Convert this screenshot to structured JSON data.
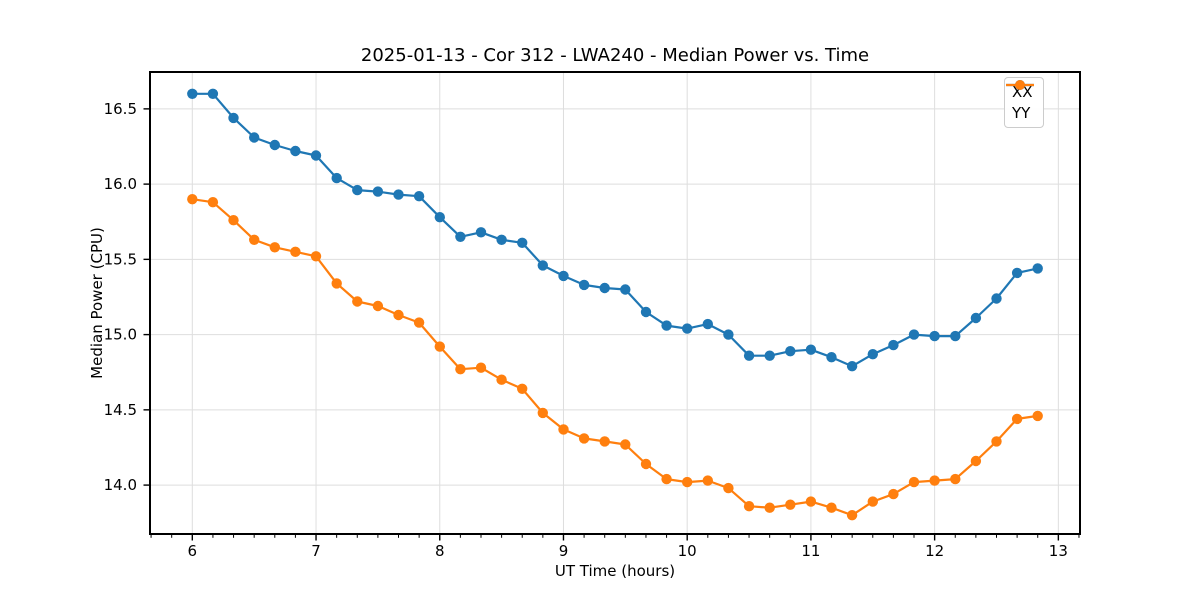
{
  "chart_data": {
    "type": "line",
    "title": "2025-01-13 - Cor 312 - LWA240 - Median Power vs. Time",
    "xlabel": "UT Time (hours)",
    "ylabel": "Median Power (CPU)",
    "xlim": [
      5.658,
      13.175
    ],
    "ylim": [
      13.675,
      16.745
    ],
    "x_ticks": [
      6,
      7,
      8,
      9,
      10,
      11,
      12,
      13
    ],
    "x_minor_step_hours": 0.16667,
    "y_ticks": [
      14.0,
      14.5,
      15.0,
      15.5,
      16.0,
      16.5
    ],
    "grid": true,
    "legend_position": "upper right",
    "marker": "o",
    "colors": {
      "grid": "#dedede",
      "spine": "#000000",
      "legend_border": "#cccccc"
    },
    "x": [
      6.0,
      6.1667,
      6.3333,
      6.5,
      6.6667,
      6.8333,
      7.0,
      7.1667,
      7.3333,
      7.5,
      7.6667,
      7.8333,
      8.0,
      8.1667,
      8.3333,
      8.5,
      8.6667,
      8.8333,
      9.0,
      9.1667,
      9.3333,
      9.5,
      9.6667,
      9.8333,
      10.0,
      10.1667,
      10.3333,
      10.5,
      10.6667,
      10.8333,
      11.0,
      11.1667,
      11.3333,
      11.5,
      11.6667,
      11.8333,
      12.0,
      12.1667,
      12.3333,
      12.5,
      12.6667,
      12.8333
    ],
    "series": [
      {
        "name": "XX",
        "color": "#1f77b4",
        "values": [
          16.6,
          16.6,
          16.44,
          16.31,
          16.26,
          16.22,
          16.19,
          16.04,
          15.96,
          15.95,
          15.93,
          15.92,
          15.78,
          15.65,
          15.68,
          15.63,
          15.61,
          15.46,
          15.39,
          15.33,
          15.31,
          15.3,
          15.15,
          15.06,
          15.04,
          15.07,
          15.0,
          14.86,
          14.86,
          14.89,
          14.9,
          14.85,
          14.79,
          14.87,
          14.93,
          15.0,
          14.99,
          14.99,
          15.11,
          15.24,
          15.41,
          15.44
        ]
      },
      {
        "name": "YY",
        "color": "#ff7f0e",
        "values": [
          15.9,
          15.88,
          15.76,
          15.63,
          15.58,
          15.55,
          15.52,
          15.34,
          15.22,
          15.19,
          15.13,
          15.08,
          14.92,
          14.77,
          14.78,
          14.7,
          14.64,
          14.48,
          14.37,
          14.31,
          14.29,
          14.27,
          14.14,
          14.04,
          14.02,
          14.03,
          13.98,
          13.86,
          13.85,
          13.87,
          13.89,
          13.85,
          13.8,
          13.89,
          13.94,
          14.02,
          14.03,
          14.04,
          14.16,
          14.29,
          14.44,
          14.46
        ]
      }
    ]
  }
}
